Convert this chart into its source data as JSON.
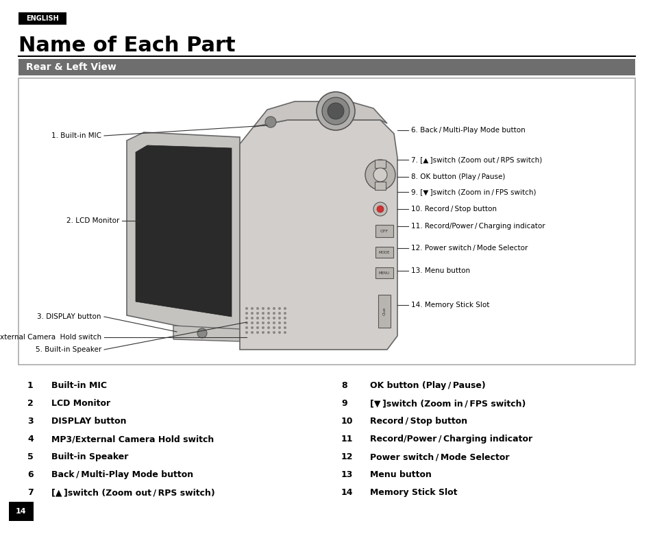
{
  "page_bg": "#ffffff",
  "english_badge_bg": "#000000",
  "english_badge_text": "ENGLISH",
  "english_badge_color": "#ffffff",
  "main_title": "Name of Each Part",
  "section_title": "Rear & Left View",
  "section_title_bg": "#6e6e6e",
  "section_title_color": "#ffffff",
  "diagram_border_color": "#aaaaaa",
  "diagram_bg": "#ffffff",
  "bottom_left_items": [
    {
      "num": "1",
      "text": "Built-in MIC"
    },
    {
      "num": "2",
      "text": "LCD Monitor"
    },
    {
      "num": "3",
      "text": "DISPLAY button"
    },
    {
      "num": "4",
      "text": "MP3/External Camera Hold switch"
    },
    {
      "num": "5",
      "text": "Built-in Speaker"
    },
    {
      "num": "6",
      "text": "Back / Multi-Play Mode button"
    },
    {
      "num": "7",
      "text": "[▲ ]switch (Zoom out / RPS switch)"
    }
  ],
  "bottom_right_items": [
    {
      "num": "8",
      "text": "OK button (Play / Pause)"
    },
    {
      "num": "9",
      "text": "[▼ ]switch (Zoom in / FPS switch)"
    },
    {
      "num": "10",
      "text": "Record / Stop button"
    },
    {
      "num": "11",
      "text": "Record/Power / Charging indicator"
    },
    {
      "num": "12",
      "text": "Power switch / Mode Selector"
    },
    {
      "num": "13",
      "text": "Menu button"
    },
    {
      "num": "14",
      "text": "Memory Stick Slot"
    }
  ],
  "page_number": "14"
}
